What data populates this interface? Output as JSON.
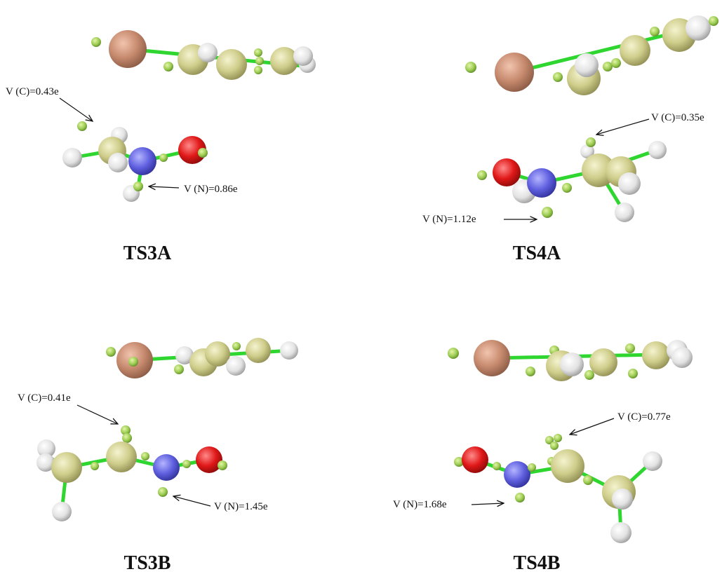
{
  "panels": [
    {
      "title": "TS3A",
      "annotations": [
        "V (C)=0.43e",
        "V (N)=0.86e"
      ]
    },
    {
      "title": "TS4A",
      "annotations": [
        "V (C)=0.35e",
        "V (N)=1.12e"
      ]
    },
    {
      "title": "TS3B",
      "annotations": [
        "V (C)=0.41e",
        "V (N)=1.45e"
      ]
    },
    {
      "title": "TS4B",
      "annotations": [
        "V (C)=0.77e",
        "V (N)=1.68e"
      ]
    }
  ]
}
